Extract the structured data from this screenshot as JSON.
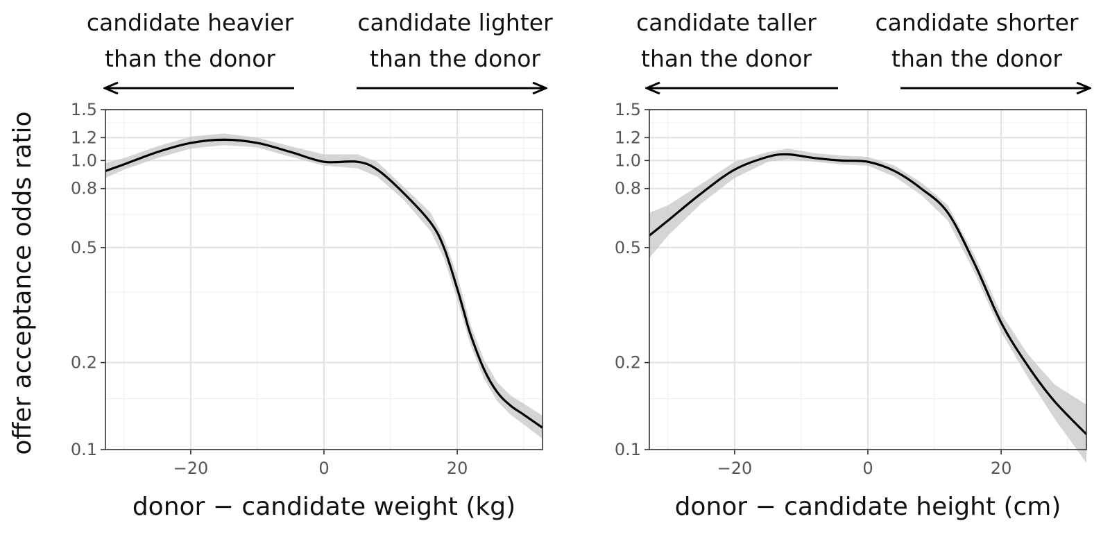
{
  "ylabel": "offer acceptance odds ratio",
  "chart_data": [
    {
      "type": "line",
      "xlabel": "donor − candidate weight (kg)",
      "annot_left": [
        "candidate heavier",
        "than the donor"
      ],
      "annot_right": [
        "candidate lighter",
        "than the donor"
      ],
      "x_ticks": [
        "−20",
        "0",
        "20"
      ],
      "y_ticks": [
        "0.1",
        "0.2",
        "0.5",
        "0.8",
        "1.0",
        "1.2",
        "1.5"
      ],
      "xlim": [
        -32.8,
        32.8
      ],
      "ylim": [
        0.1,
        1.5
      ],
      "y_scale": "log",
      "grid": true,
      "x": [
        -32.8,
        -30,
        -25,
        -20,
        -15,
        -10,
        -5,
        0,
        5,
        8,
        12,
        16,
        18,
        20,
        21,
        22,
        24,
        26,
        28,
        30,
        32.8
      ],
      "y": [
        0.92,
        0.97,
        1.07,
        1.15,
        1.18,
        1.15,
        1.07,
        0.99,
        0.99,
        0.93,
        0.77,
        0.61,
        0.5,
        0.36,
        0.3,
        0.25,
        0.19,
        0.158,
        0.142,
        0.132,
        0.119
      ],
      "ci_lower": [
        0.87,
        0.93,
        1.02,
        1.1,
        1.13,
        1.11,
        1.03,
        0.96,
        0.94,
        0.88,
        0.73,
        0.57,
        0.46,
        0.33,
        0.275,
        0.23,
        0.176,
        0.147,
        0.132,
        0.122,
        0.109
      ],
      "ci_upper": [
        0.98,
        1.02,
        1.12,
        1.21,
        1.24,
        1.2,
        1.12,
        1.05,
        1.05,
        0.99,
        0.81,
        0.66,
        0.54,
        0.4,
        0.33,
        0.27,
        0.205,
        0.171,
        0.154,
        0.144,
        0.131
      ]
    },
    {
      "type": "line",
      "xlabel": "donor − candidate height (cm)",
      "annot_left": [
        "candidate taller",
        "than the donor"
      ],
      "annot_right": [
        "candidate shorter",
        "than the donor"
      ],
      "x_ticks": [
        "−20",
        "0",
        "20"
      ],
      "y_ticks": [
        "0.1",
        "0.2",
        "0.5",
        "0.8",
        "1.0",
        "1.2",
        "1.5"
      ],
      "xlim": [
        -32.8,
        32.8
      ],
      "ylim": [
        0.1,
        1.5
      ],
      "y_scale": "log",
      "grid": true,
      "x": [
        -32.8,
        -30,
        -25,
        -20,
        -15,
        -12,
        -8,
        -4,
        0,
        4,
        8,
        12,
        16,
        20,
        24,
        28,
        32.8
      ],
      "y": [
        0.55,
        0.62,
        0.77,
        0.93,
        1.03,
        1.05,
        1.02,
        1.0,
        0.99,
        0.92,
        0.8,
        0.66,
        0.44,
        0.275,
        0.195,
        0.147,
        0.113
      ],
      "ci_lower": [
        0.46,
        0.55,
        0.71,
        0.87,
        0.99,
        1.01,
        0.99,
        0.97,
        0.96,
        0.88,
        0.76,
        0.62,
        0.41,
        0.255,
        0.178,
        0.128,
        0.09
      ],
      "ci_upper": [
        0.66,
        0.7,
        0.83,
        0.99,
        1.07,
        1.1,
        1.06,
        1.04,
        1.03,
        0.96,
        0.84,
        0.7,
        0.47,
        0.295,
        0.214,
        0.168,
        0.143
      ]
    }
  ]
}
